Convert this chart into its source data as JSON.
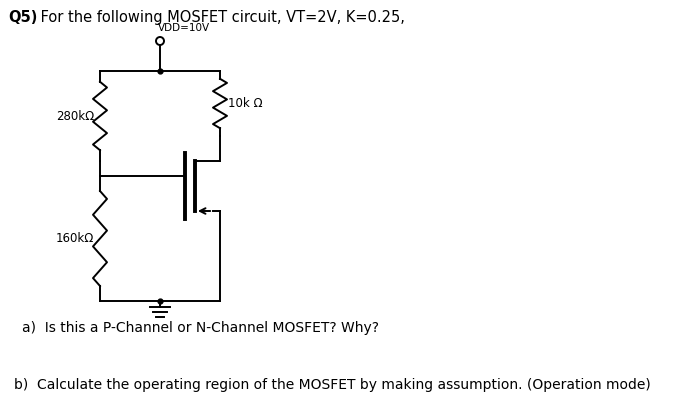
{
  "title_bold": "Q5)",
  "title_rest": " For the following MOSFET circuit, VT=2V, K=0.25,",
  "vdd_label": "VDD=10V",
  "r1_label": "280kΩ",
  "r2_label": "160kΩ",
  "rd_label": "10k Ω",
  "question_a": "a)  Is this a P-Channel or N-Channel MOSFET? Why?",
  "question_b": "b)  Calculate the operating region of the MOSFET by making assumption. (Operation mode)",
  "bg_color": "#ffffff",
  "line_color": "#000000",
  "font_size_title": 10.5,
  "font_size_labels": 8.5,
  "font_size_questions": 10
}
